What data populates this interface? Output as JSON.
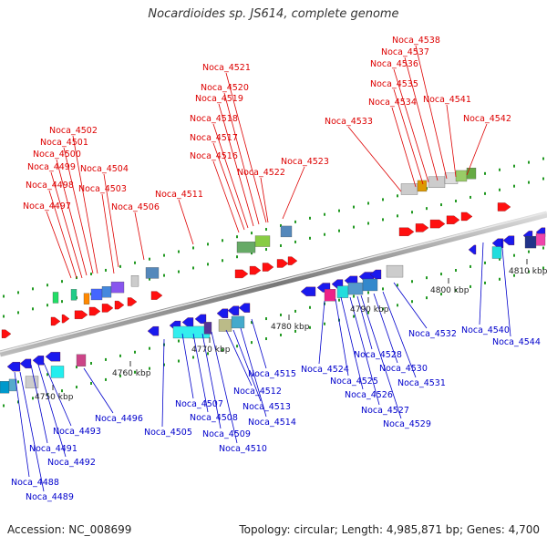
{
  "title": "Nocardioides sp. JS614, complete genome",
  "footer": {
    "accession": "Accession: NC_008699",
    "summary": "Topology: circular; Length: 4,985,871 bp; Genes: 4,700"
  },
  "colors": {
    "forward_label": "#dd0000",
    "reverse_label": "#0000cc",
    "forward_gene": "#ff1010",
    "reverse_gene": "#1a1aee",
    "backbone": "#888888"
  },
  "scale_labels": [
    "4750 kbp",
    "4760 kbp",
    "4770 kbp",
    "4780 kbp",
    "4790 kbp",
    "4800 kbp",
    "4810 kbp"
  ],
  "forward_labels": [
    "Noca_4497",
    "Noca_4498",
    "Noca_4499",
    "Noca_4500",
    "Noca_4501",
    "Noca_4502",
    "Noca_4503",
    "Noca_4504",
    "Noca_4506",
    "Noca_4511",
    "Noca_4516",
    "Noca_4517",
    "Noca_4518",
    "Noca_4519",
    "Noca_4520",
    "Noca_4521",
    "Noca_4522",
    "Noca_4523",
    "Noca_4533",
    "Noca_4534",
    "Noca_4535",
    "Noca_4536",
    "Noca_4537",
    "Noca_4538",
    "Noca_4541",
    "Noca_4542"
  ],
  "reverse_labels": [
    "Noca_4488",
    "Noca_4489",
    "Noca_4491",
    "Noca_4492",
    "Noca_4493",
    "Noca_4496",
    "Noca_4505",
    "Noca_4507",
    "Noca_4508",
    "Noca_4509",
    "Noca_4510",
    "Noca_4512",
    "Noca_4513",
    "Noca_4514",
    "Noca_4515",
    "Noca_4524",
    "Noca_4525",
    "Noca_4526",
    "Noca_4527",
    "Noca_4528",
    "Noca_4529",
    "Noca_4530",
    "Noca_4531",
    "Noca_4532",
    "Noca_4540",
    "Noca_4544"
  ]
}
